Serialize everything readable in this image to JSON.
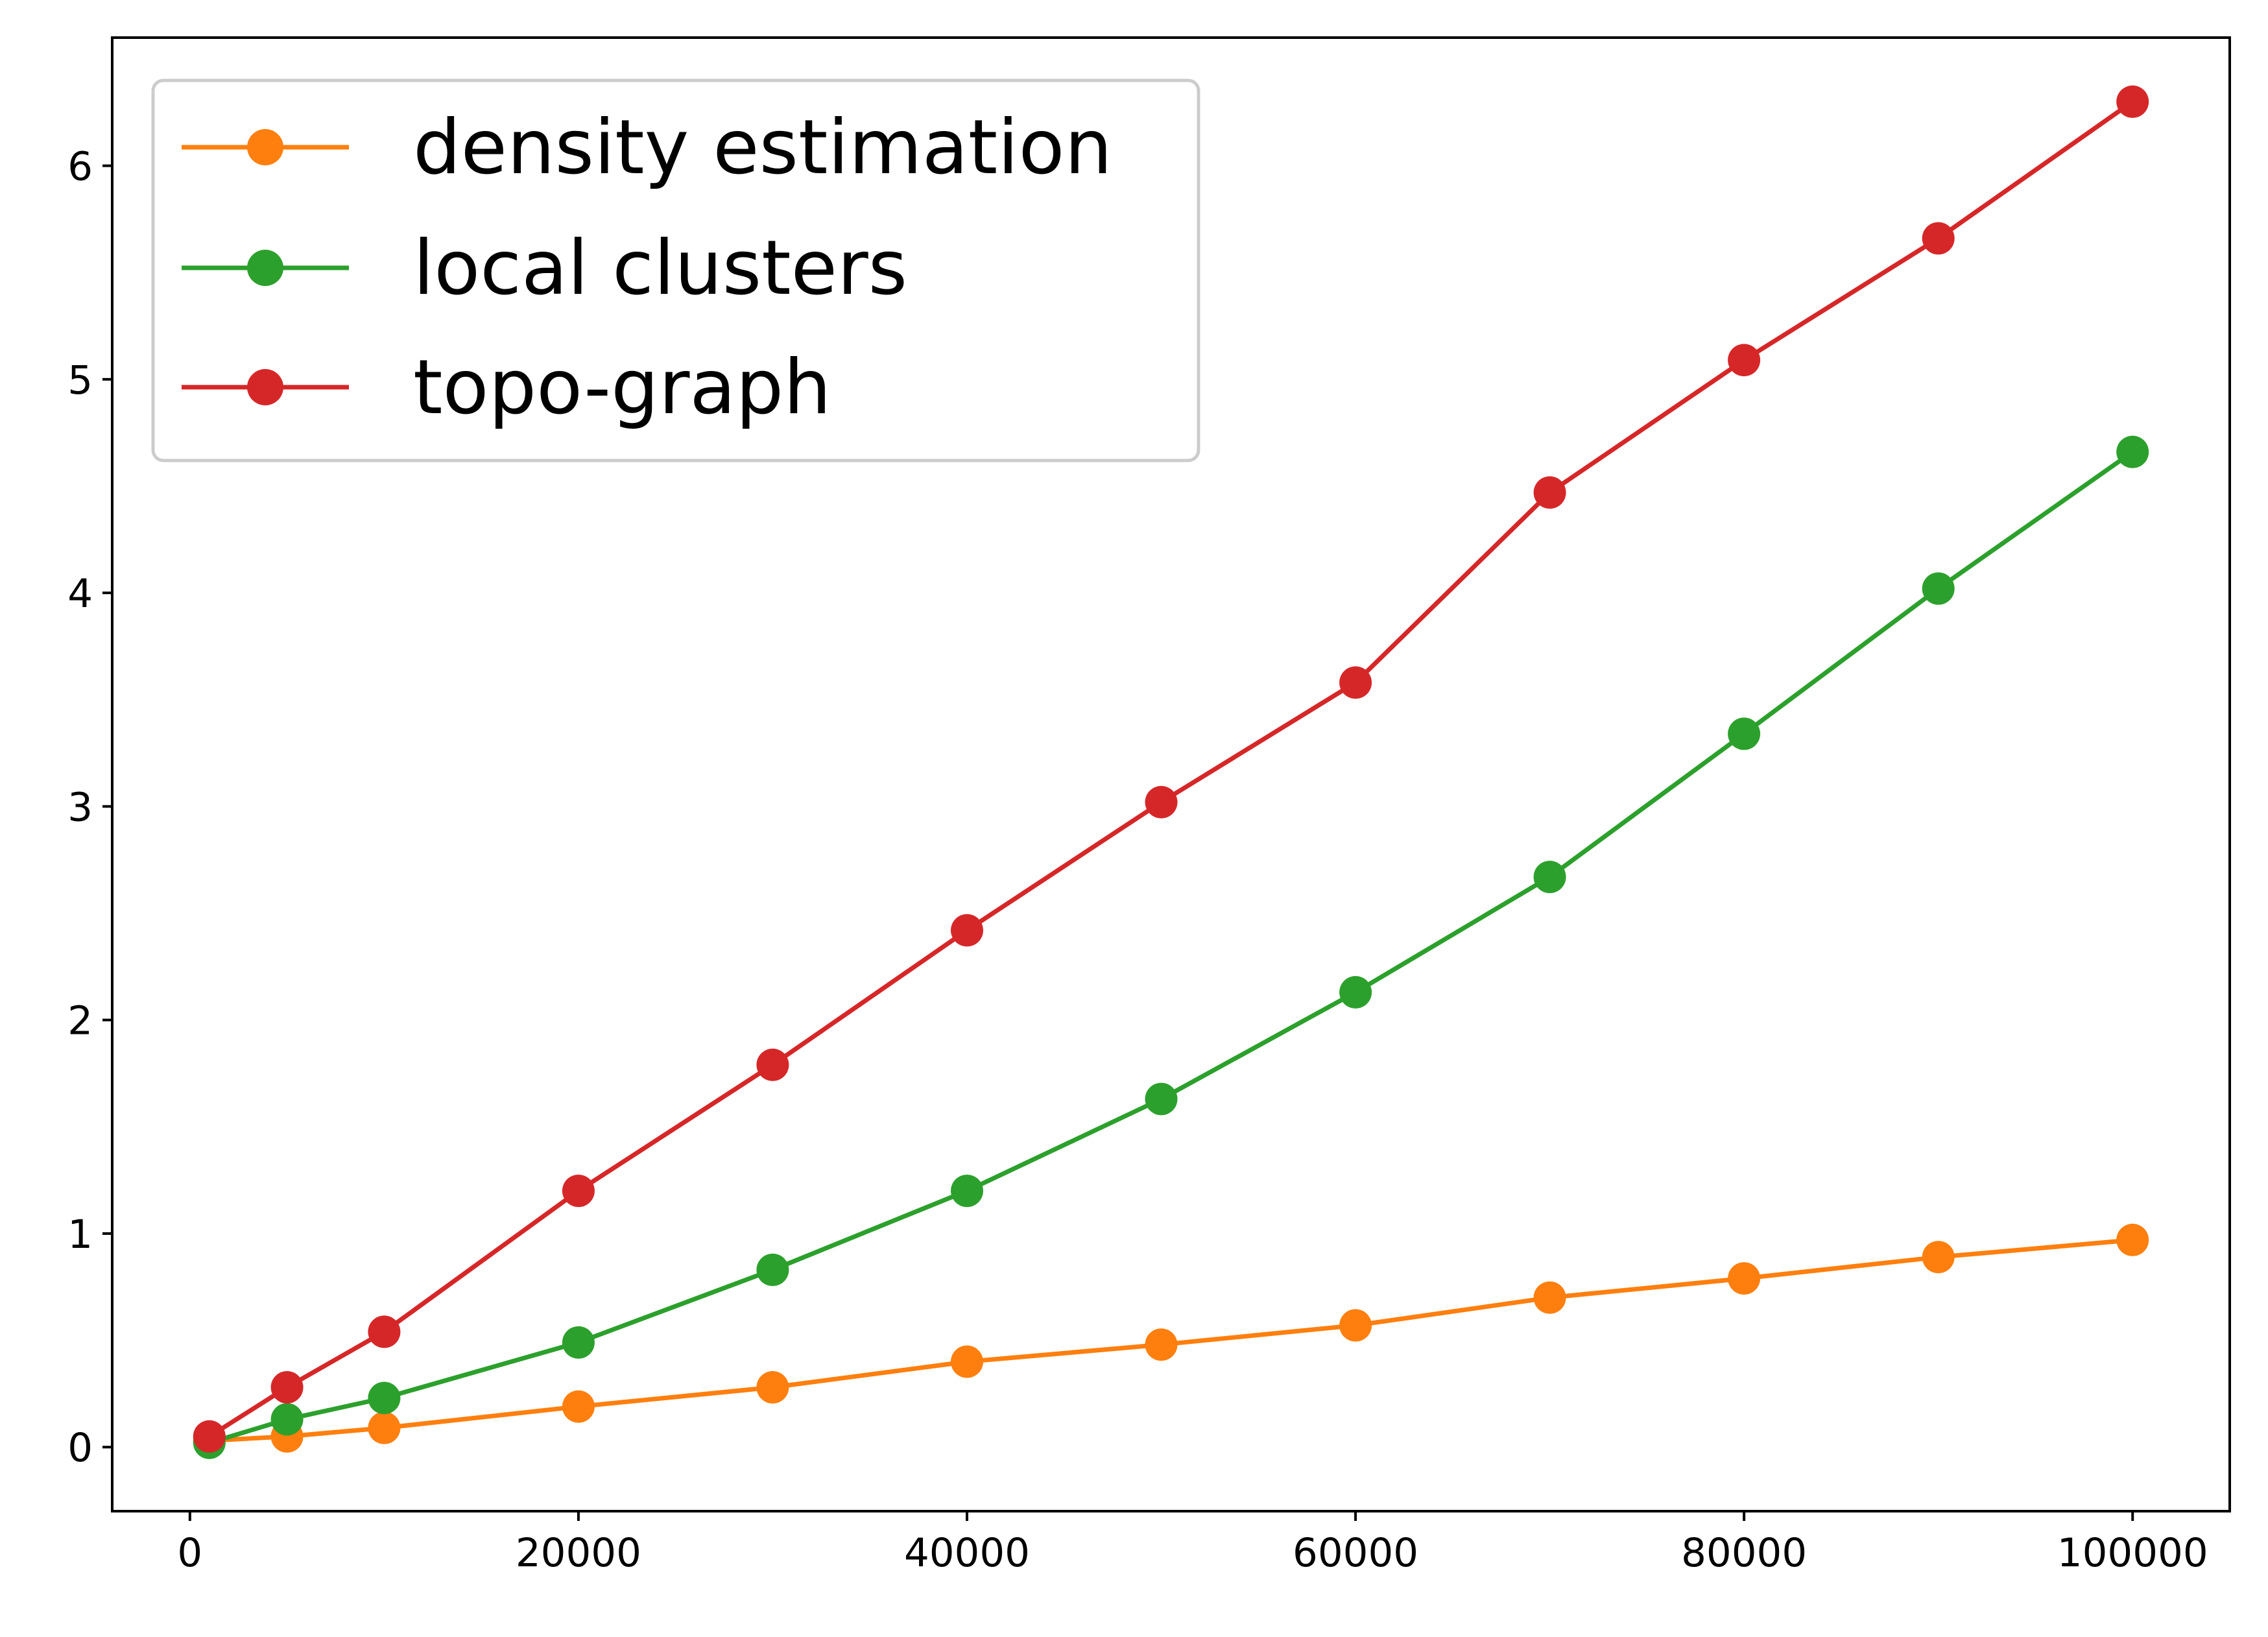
{
  "chart_data": {
    "type": "line",
    "title": "",
    "xlabel": "",
    "ylabel": "",
    "xlim": [
      -4000,
      105000
    ],
    "ylim": [
      -0.3,
      6.6
    ],
    "grid": false,
    "legend_position": "top-left",
    "x_ticks": [
      0,
      20000,
      40000,
      60000,
      80000,
      100000
    ],
    "y_ticks": [
      0,
      1,
      2,
      3,
      4,
      5,
      6
    ],
    "x": [
      1000,
      5000,
      10000,
      20000,
      30000,
      40000,
      50000,
      60000,
      70000,
      80000,
      90000,
      100000
    ],
    "series": [
      {
        "name": "density estimation",
        "color": "#ff7f0e",
        "values": [
          0.03,
          0.05,
          0.09,
          0.19,
          0.28,
          0.4,
          0.48,
          0.57,
          0.7,
          0.79,
          0.89,
          0.97
        ]
      },
      {
        "name": "local clusters",
        "color": "#2ca02c",
        "values": [
          0.02,
          0.13,
          0.23,
          0.49,
          0.83,
          1.2,
          1.63,
          2.13,
          2.67,
          3.34,
          4.02,
          4.66
        ]
      },
      {
        "name": "topo-graph",
        "color": "#d62728",
        "values": [
          0.05,
          0.28,
          0.54,
          1.2,
          1.79,
          2.42,
          3.02,
          3.58,
          4.47,
          5.09,
          5.66,
          6.3
        ]
      }
    ]
  }
}
